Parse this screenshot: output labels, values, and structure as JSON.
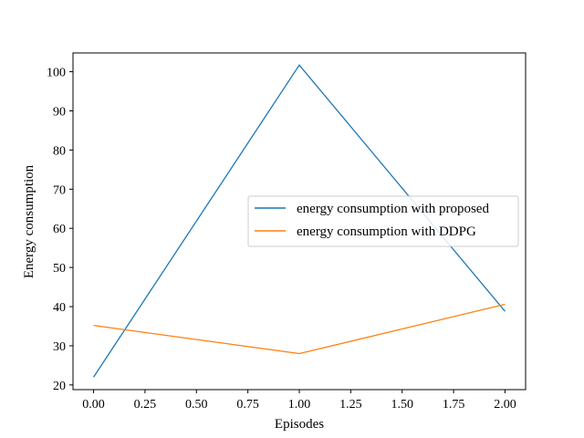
{
  "chart_data": {
    "type": "line",
    "title": "",
    "xlabel": "Episodes",
    "ylabel": "Energy consumption",
    "x": [
      0,
      1,
      2
    ],
    "xlim": [
      -0.1,
      2.1
    ],
    "ylim": [
      18.8,
      104.8
    ],
    "xticks": [
      "0.00",
      "0.25",
      "0.50",
      "0.75",
      "1.00",
      "1.25",
      "1.50",
      "1.75",
      "2.00"
    ],
    "yticks": [
      "20",
      "30",
      "40",
      "50",
      "60",
      "70",
      "80",
      "90",
      "100"
    ],
    "grid": false,
    "legend_position": "center-right",
    "series": [
      {
        "name": "energy consumption with proposed",
        "color": "#1f77b4",
        "values": [
          22.0,
          101.7,
          38.8
        ]
      },
      {
        "name": "energy consumption with DDPG",
        "color": "#ff7f0e",
        "values": [
          35.2,
          28.0,
          40.6
        ]
      }
    ]
  }
}
